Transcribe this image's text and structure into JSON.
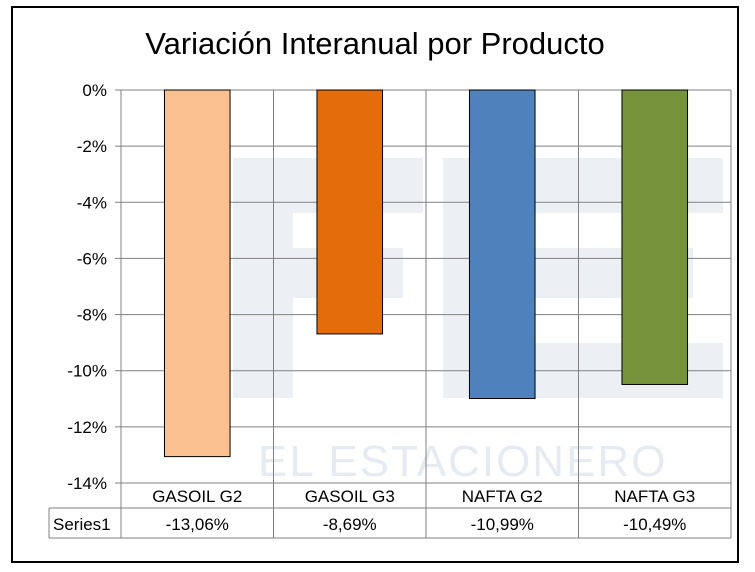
{
  "watermark": {
    "text": "EL ESTACIONERO"
  },
  "chart_data": {
    "type": "bar",
    "title": "Variación Interanual por Producto",
    "categories": [
      "GASOIL G2",
      "GASOIL G3",
      "NAFTA G2",
      "NAFTA G3"
    ],
    "series": [
      {
        "name": "Series1",
        "values": [
          -13.06,
          -8.69,
          -10.99,
          -10.49
        ],
        "value_labels": [
          "-13,06%",
          "-8,69%",
          "-10,99%",
          "-10,49%"
        ],
        "colors": [
          "#FAC090",
          "#E46C0A",
          "#4F81BD",
          "#77933C"
        ]
      }
    ],
    "yticks": [
      "0%",
      "-2%",
      "-4%",
      "-6%",
      "-8%",
      "-10%",
      "-12%",
      "-14%"
    ],
    "ylim": [
      -14,
      0
    ],
    "grid": true,
    "data_table": true
  }
}
